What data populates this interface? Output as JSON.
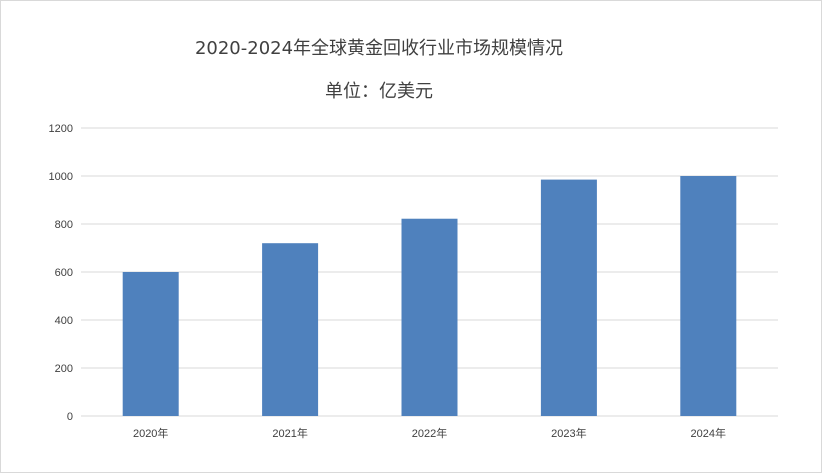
{
  "chart_data": {
    "type": "bar",
    "title": "2020-2024年全球黄金回收行业市场规模情况",
    "subtitle": "单位：亿美元",
    "categories": [
      "2020年",
      "2021年",
      "2022年",
      "2023年",
      "2024年"
    ],
    "values": [
      600,
      720,
      822,
      985,
      1000
    ],
    "y_ticks": [
      "0",
      "200",
      "400",
      "600",
      "800",
      "1000",
      "1200"
    ],
    "ylim": [
      0,
      1200
    ],
    "grid": true,
    "legend": "none",
    "bar_color": "#4f81bd",
    "grid_color": "#d9d9d9"
  }
}
